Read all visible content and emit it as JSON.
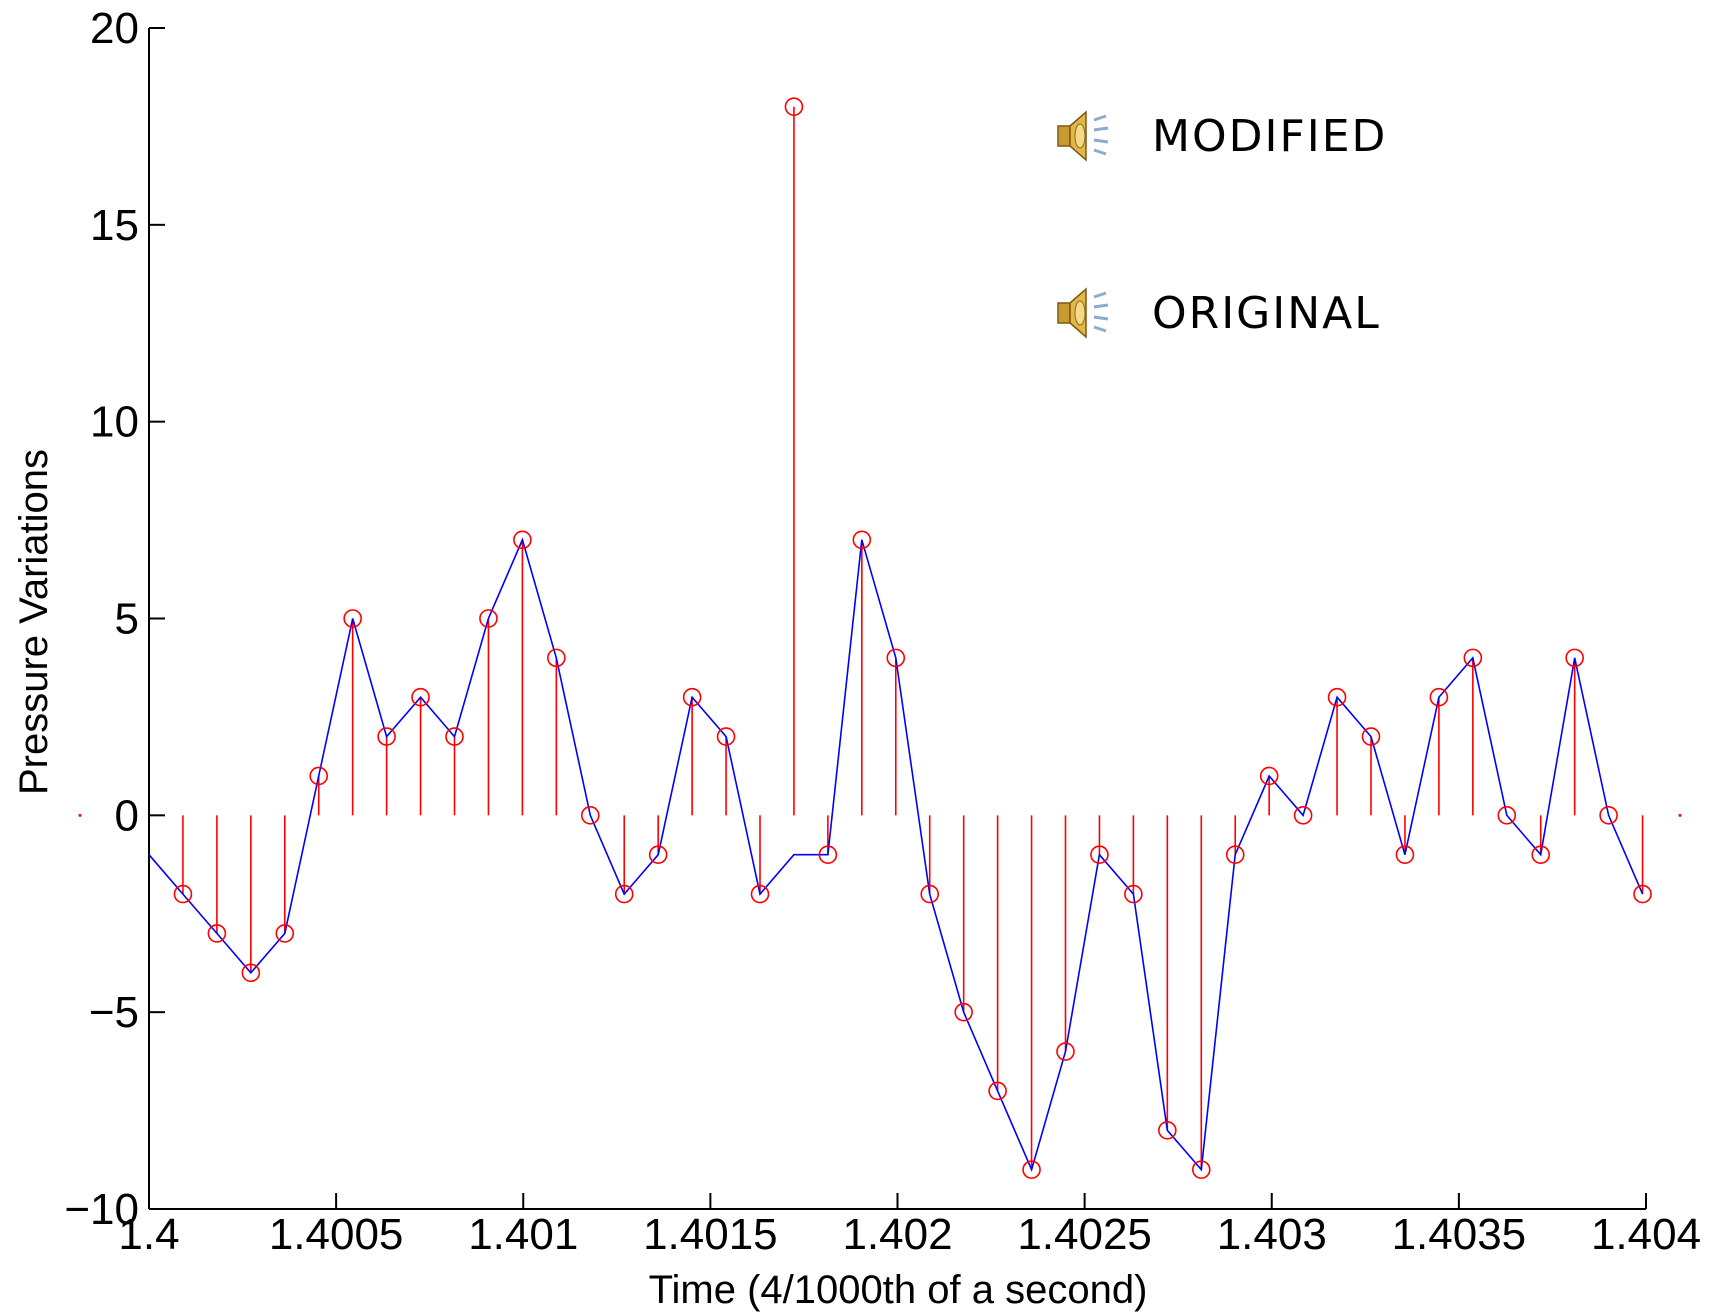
{
  "chart_data": {
    "type": "stem",
    "title": "",
    "xlabel": "Time (4/1000th of a second)",
    "ylabel": "Pressure Variations",
    "xlim": [
      1.4,
      1.404
    ],
    "ylim": [
      -10,
      20
    ],
    "xticks": [
      1.4,
      1.4005,
      1.401,
      1.4015,
      1.402,
      1.4025,
      1.403,
      1.4035,
      1.404
    ],
    "xtick_labels": [
      "1.4",
      "1.4005",
      "1.401",
      "1.4015",
      "1.402",
      "1.4025",
      "1.403",
      "1.4035",
      "1.404"
    ],
    "yticks": [
      -10,
      -5,
      0,
      5,
      10,
      15,
      20
    ],
    "ytick_labels": [
      "−10",
      "−5",
      "0",
      "5",
      "10",
      "15",
      "20"
    ],
    "x_start": 1.4,
    "x_step": 9.07e-05,
    "series": [
      {
        "style": "stem",
        "color": "#ff0000",
        "values": [
          -1,
          -2,
          -3,
          -4,
          -3,
          1,
          5,
          2,
          3,
          2,
          5,
          7,
          4,
          0,
          -2,
          -1,
          3,
          2,
          -2,
          18,
          -1,
          7,
          4,
          -2,
          -5,
          -7,
          -9,
          -6,
          -1,
          -2,
          -8,
          -9,
          -1,
          1,
          0,
          3,
          2,
          -1,
          3,
          4,
          0,
          -1,
          4,
          0,
          -2
        ]
      },
      {
        "style": "line",
        "color": "#0000ff",
        "values": [
          -1,
          -2,
          -3,
          -4,
          -3,
          1,
          5,
          2,
          3,
          2,
          5,
          7,
          4,
          0,
          -2,
          -1,
          3,
          2,
          -2,
          -1,
          -1,
          7,
          4,
          -2,
          -5,
          -7,
          -9,
          -6,
          -1,
          -2,
          -8,
          -9,
          -1,
          1,
          0,
          3,
          2,
          -1,
          3,
          4,
          0,
          -1,
          4,
          0,
          -2
        ]
      }
    ],
    "grid": false
  },
  "legend": {
    "modified_label": "MODIFIED",
    "original_label": "ORIGINAL",
    "icon": "speaker-icon"
  }
}
